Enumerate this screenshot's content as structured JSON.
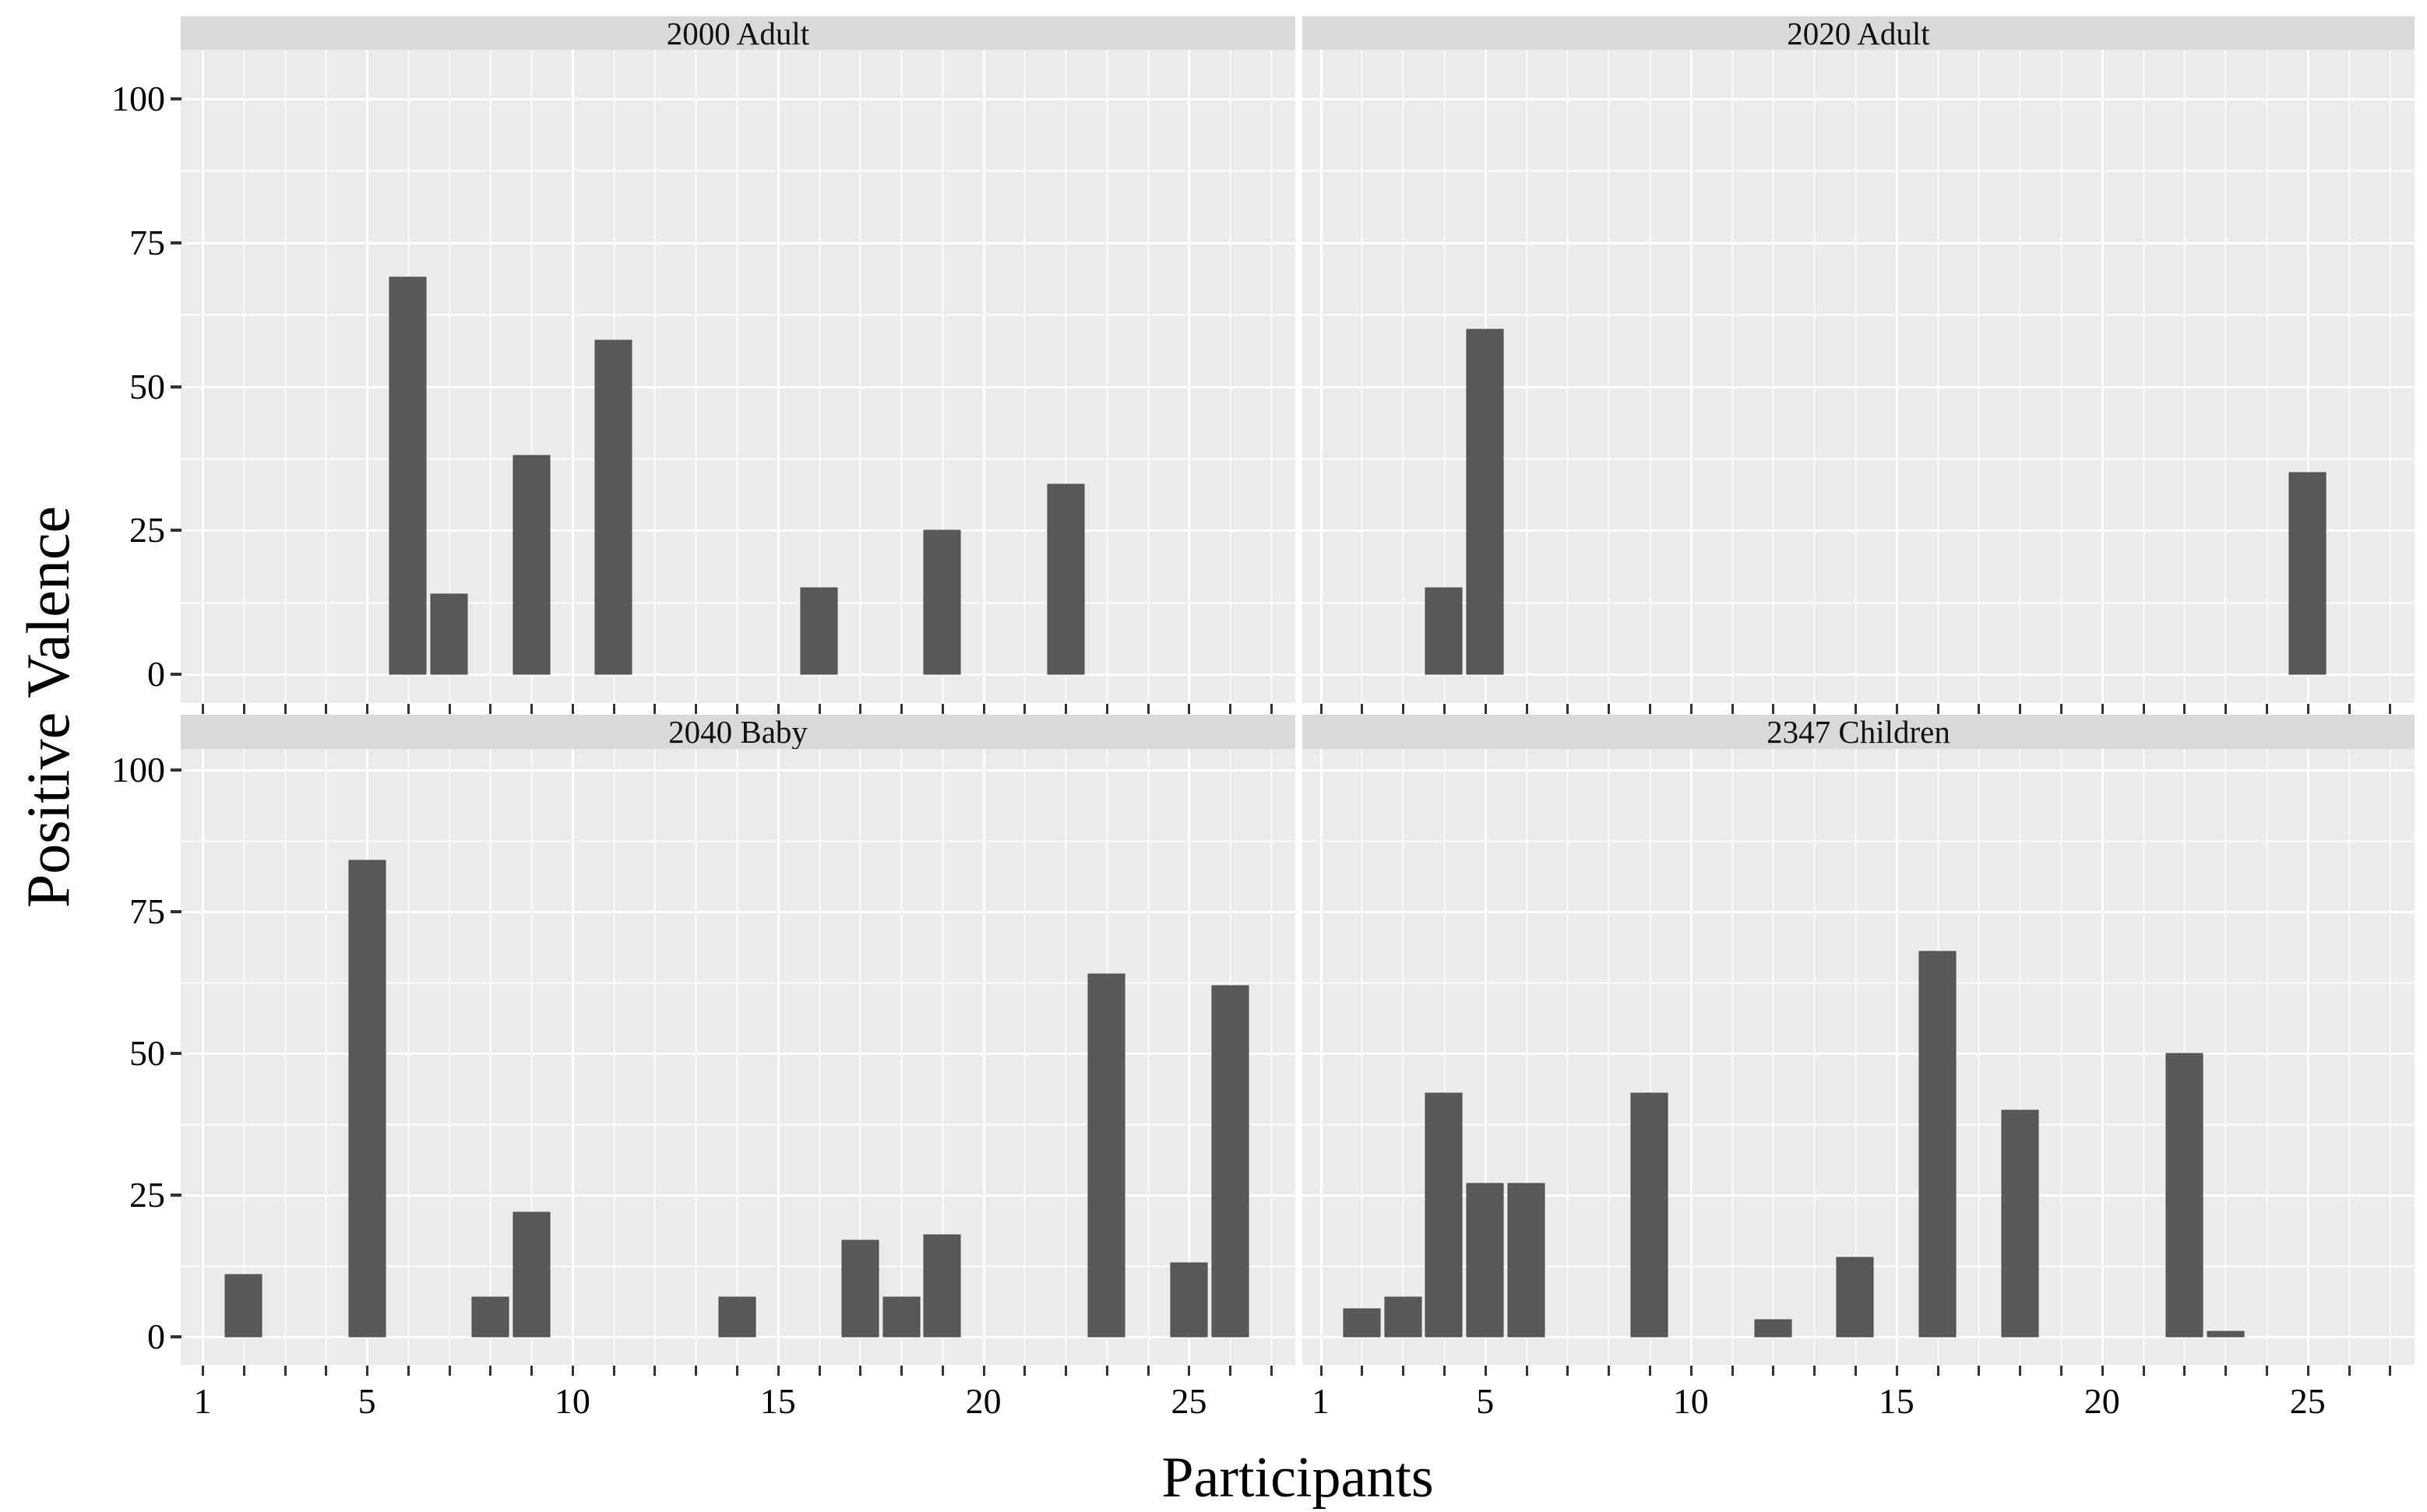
{
  "chart_data": {
    "type": "bar",
    "xlabel": "Participants",
    "ylabel": "Positive Valence",
    "ylim": [
      0,
      100
    ],
    "y_breaks": [
      0,
      25,
      50,
      75,
      100
    ],
    "y_minor_breaks": [
      12.5,
      37.5,
      62.5,
      87.5
    ],
    "x_breaks": [
      1,
      5,
      10,
      15,
      20,
      25
    ],
    "x_tick_every": 1,
    "x_tick_max": 27,
    "grid": "on",
    "legend": "none",
    "colors": {
      "bar_fill": "#595959",
      "bar_edge": "#4a4a4a",
      "panel_bg": "#EBEBEB",
      "strip_bg": "#D9D9D9",
      "grid_line": "#FFFFFF",
      "tick_mark": "#333333",
      "text": "#000000"
    },
    "facets": [
      {
        "label": "2000 Adult",
        "bars": [
          {
            "participant": 6,
            "value": 69
          },
          {
            "participant": 7,
            "value": 14
          },
          {
            "participant": 9,
            "value": 38
          },
          {
            "participant": 11,
            "value": 58
          },
          {
            "participant": 16,
            "value": 15
          },
          {
            "participant": 19,
            "value": 25
          },
          {
            "participant": 22,
            "value": 33
          }
        ]
      },
      {
        "label": "2020 Adult",
        "bars": [
          {
            "participant": 4,
            "value": 15
          },
          {
            "participant": 5,
            "value": 60
          },
          {
            "participant": 25,
            "value": 35
          }
        ]
      },
      {
        "label": "2040 Baby",
        "bars": [
          {
            "participant": 2,
            "value": 11
          },
          {
            "participant": 5,
            "value": 84
          },
          {
            "participant": 8,
            "value": 7
          },
          {
            "participant": 9,
            "value": 22
          },
          {
            "participant": 14,
            "value": 7
          },
          {
            "participant": 17,
            "value": 17
          },
          {
            "participant": 18,
            "value": 7
          },
          {
            "participant": 19,
            "value": 18
          },
          {
            "participant": 23,
            "value": 64
          },
          {
            "participant": 25,
            "value": 13
          },
          {
            "participant": 26,
            "value": 62
          }
        ]
      },
      {
        "label": "2347 Children",
        "bars": [
          {
            "participant": 2,
            "value": 5
          },
          {
            "participant": 3,
            "value": 7
          },
          {
            "participant": 4,
            "value": 43
          },
          {
            "participant": 5,
            "value": 27
          },
          {
            "participant": 6,
            "value": 27
          },
          {
            "participant": 9,
            "value": 43
          },
          {
            "participant": 12,
            "value": 3
          },
          {
            "participant": 14,
            "value": 14
          },
          {
            "participant": 16,
            "value": 68
          },
          {
            "participant": 18,
            "value": 40
          },
          {
            "participant": 22,
            "value": 50
          },
          {
            "participant": 23,
            "value": 1
          }
        ]
      }
    ]
  }
}
